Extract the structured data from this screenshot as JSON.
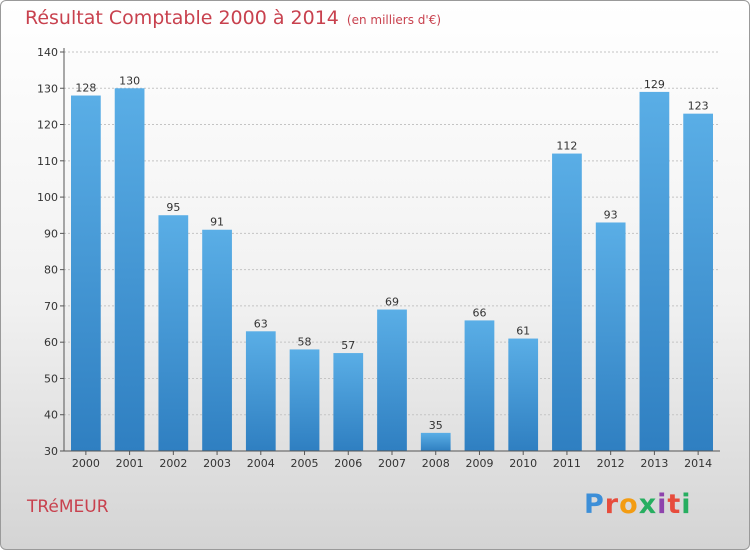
{
  "chart_data": {
    "type": "bar",
    "title": "Résultat Comptable 2000 à 2014",
    "unit": "(en milliers d'€)",
    "categories": [
      "2000",
      "2001",
      "2002",
      "2003",
      "2004",
      "2005",
      "2006",
      "2007",
      "2008",
      "2009",
      "2010",
      "2011",
      "2012",
      "2013",
      "2014"
    ],
    "values": [
      128,
      130,
      95,
      91,
      63,
      58,
      57,
      69,
      35,
      66,
      61,
      112,
      93,
      129,
      123
    ],
    "ylim": [
      30,
      140
    ],
    "yticks": [
      30,
      40,
      50,
      60,
      70,
      80,
      90,
      100,
      110,
      120,
      130,
      140
    ],
    "xlabel": "",
    "ylabel": "",
    "bar_color": "#5aaee6",
    "bar_color_dark": "#2f7fc1"
  },
  "town": "TRéMEUR",
  "logo": {
    "p": "P",
    "r": "r",
    "o": "o",
    "x": "x",
    "i1": "i",
    "t": "t",
    "i2": "i"
  }
}
